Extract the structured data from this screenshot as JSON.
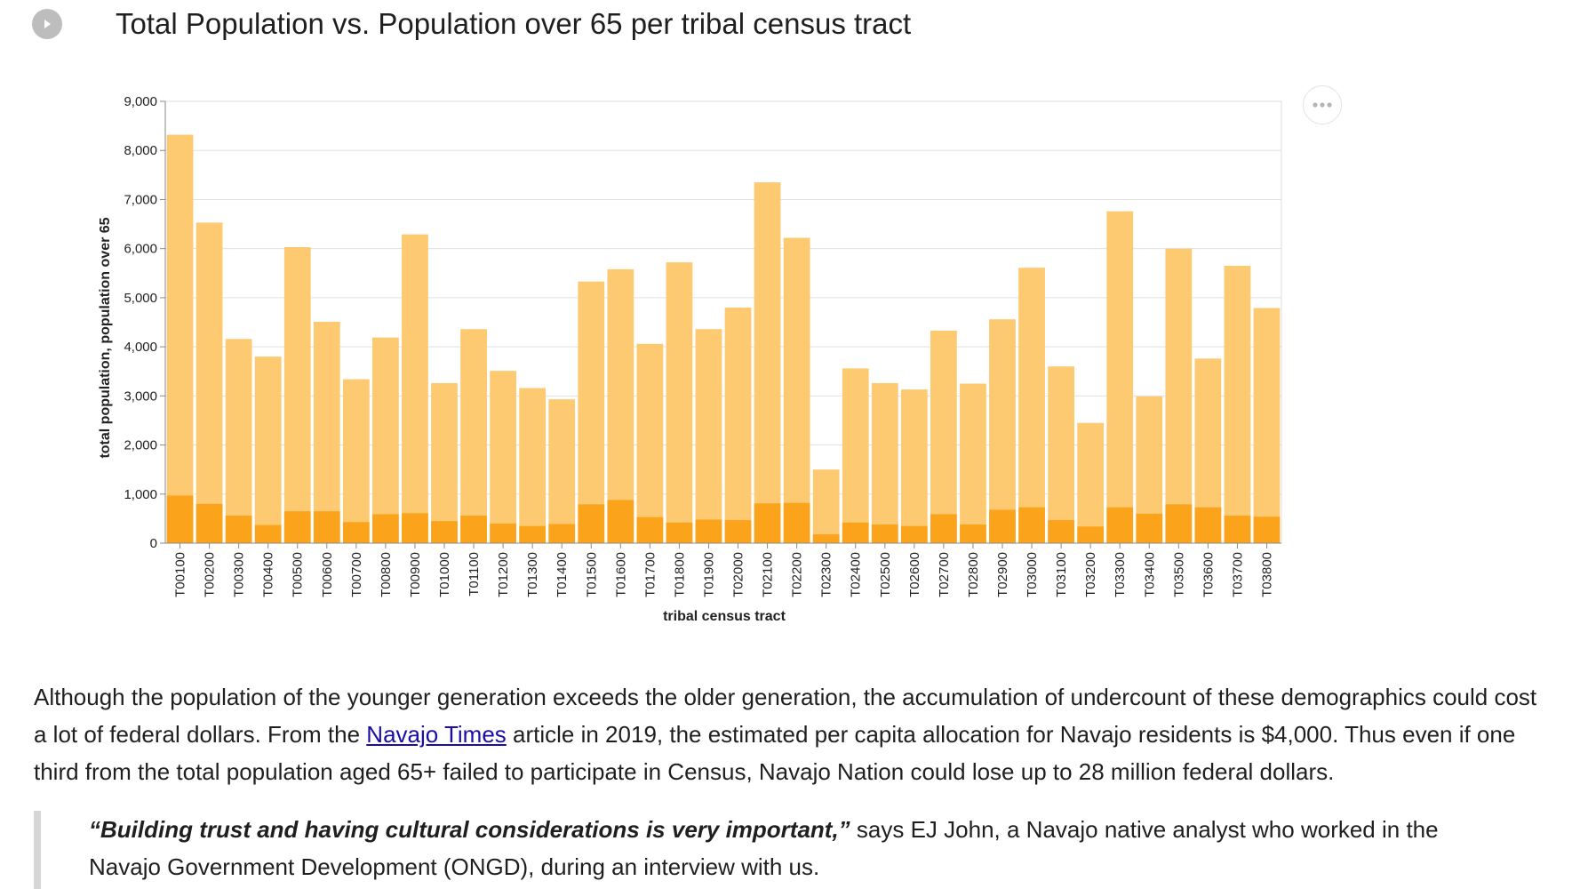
{
  "header": {
    "title": "Total Population vs. Population over 65 per tribal census tract"
  },
  "icons": {
    "play": "play-icon",
    "menu": "more-horizontal-icon"
  },
  "colors": {
    "total_bar": "#fdc971",
    "over65_bar": "#fba41b",
    "gridline": "#e0e0e0",
    "axis": "#8a8a8a",
    "link": "#1a0dab"
  },
  "chart_data": {
    "type": "bar",
    "layout": "overlaid",
    "xlabel": "tribal census tract",
    "ylabel": "total population, population over 65",
    "ylim": [
      0,
      9000
    ],
    "yticks": [
      0,
      1000,
      2000,
      3000,
      4000,
      5000,
      6000,
      7000,
      8000,
      9000
    ],
    "ytick_labels": [
      "0",
      "1,000",
      "2,000",
      "3,000",
      "4,000",
      "5,000",
      "6,000",
      "7,000",
      "8,000",
      "9,000"
    ],
    "grid": true,
    "categories": [
      "T00100",
      "T00200",
      "T00300",
      "T00400",
      "T00500",
      "T00600",
      "T00700",
      "T00800",
      "T00900",
      "T01000",
      "T01100",
      "T01200",
      "T01300",
      "T01400",
      "T01500",
      "T01600",
      "T01700",
      "T01800",
      "T01900",
      "T02000",
      "T02100",
      "T02200",
      "T02300",
      "T02400",
      "T02500",
      "T02600",
      "T02700",
      "T02800",
      "T02900",
      "T03000",
      "T03100",
      "T03200",
      "T03300",
      "T03400",
      "T03500",
      "T03600",
      "T03700",
      "T03800"
    ],
    "series": [
      {
        "key": "total",
        "values": [
          8320,
          6530,
          4160,
          3800,
          6030,
          4510,
          3340,
          4190,
          6290,
          3260,
          4360,
          3510,
          3160,
          2930,
          5330,
          5580,
          4060,
          5720,
          4360,
          4800,
          7350,
          6220,
          1500,
          3560,
          3260,
          3130,
          4330,
          3250,
          4560,
          5610,
          3600,
          2450,
          6760,
          2990,
          6000,
          3760,
          5650,
          4790
        ]
      },
      {
        "key": "over65",
        "values": [
          970,
          800,
          560,
          370,
          650,
          650,
          430,
          590,
          610,
          450,
          560,
          400,
          350,
          390,
          790,
          880,
          530,
          420,
          480,
          470,
          810,
          820,
          180,
          420,
          380,
          350,
          590,
          380,
          680,
          730,
          470,
          340,
          730,
          600,
          790,
          730,
          560,
          540
        ]
      }
    ]
  },
  "article": {
    "p1_before": "Although the population of the younger generation exceeds the older generation, the accumulation of undercount of these demographics could cost a lot of federal dollars. From the ",
    "p1_link": "Navajo Times",
    "p1_after": " article in 2019, the estimated per capita allocation for Navajo residents is $4,000. Thus even if one third from the total population aged 65+ failed to participate in Census, Navajo Nation could lose up to 28 million federal dollars."
  },
  "quote": {
    "emphasis": "“Building trust and having cultural considerations is very important,”",
    "rest": " says EJ John, a Navajo native analyst who worked in the Navajo Government Development (ONGD), during an interview with us."
  }
}
